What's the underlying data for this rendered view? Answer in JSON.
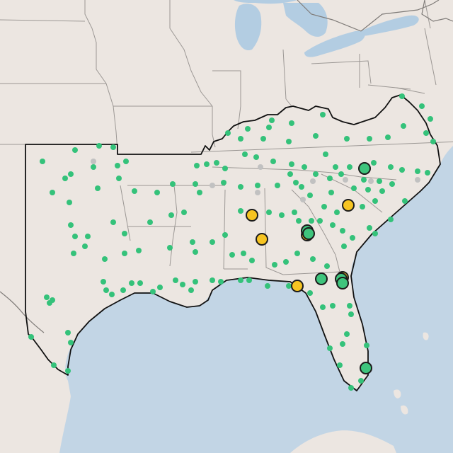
{
  "map": {
    "colors": {
      "land": "#ece6e1",
      "water": "#c2d5e5",
      "lake": "#b3cde2",
      "state_border": "#8e8a87",
      "country_border": "#7f7b78",
      "region_outline": "#111111",
      "small_dot": "#34c27a",
      "small_dot_muted": "#c1c1c1",
      "large_green": "#3ec47c",
      "large_yellow": "#f6c422",
      "marker_stroke": "#1b1b1b"
    },
    "markers": {
      "large_green_count": 7,
      "large_yellow_count": 6
    }
  }
}
